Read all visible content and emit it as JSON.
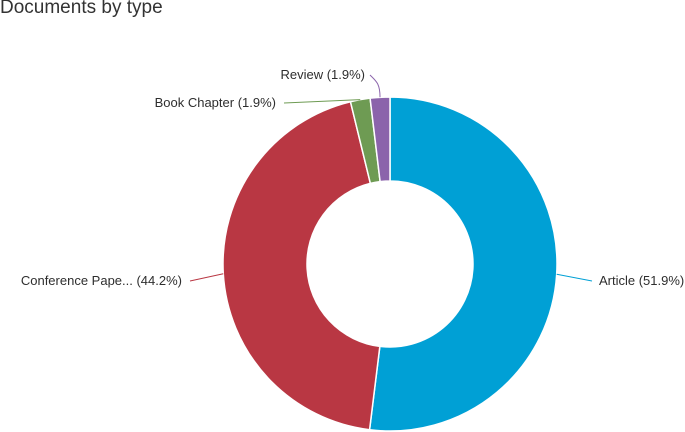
{
  "chart_data": {
    "type": "pie",
    "title": "Documents by type",
    "donut": true,
    "slices": [
      {
        "name": "Article",
        "label": "Article (51.9%)",
        "value": 51.9,
        "color": "#00a0d5"
      },
      {
        "name": "Conference Pape...",
        "label": "Conference Pape... (44.2%)",
        "value": 44.2,
        "color": "#b93743"
      },
      {
        "name": "Book Chapter",
        "label": "Book Chapter (1.9%)",
        "value": 1.9,
        "color": "#6e9b53"
      },
      {
        "name": "Review",
        "label": "Review (1.9%)",
        "value": 1.9,
        "color": "#8b64ab"
      }
    ]
  }
}
